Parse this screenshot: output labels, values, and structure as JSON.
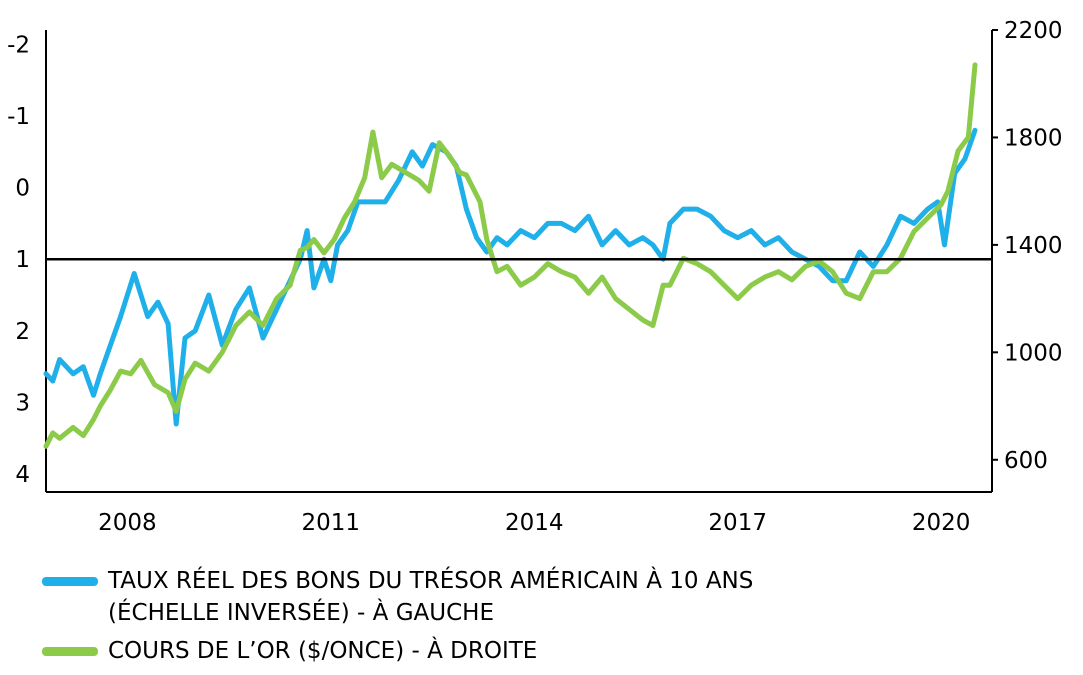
{
  "chart_data": {
    "type": "line",
    "title": "",
    "left_axis": {
      "ticks": [
        "-2",
        "-1",
        "0",
        "1",
        "2",
        "3",
        "4"
      ],
      "values": [
        -2,
        -1,
        0,
        1,
        2,
        3,
        4
      ],
      "inverted": true,
      "ylim": [
        -2.2,
        4.25
      ]
    },
    "right_axis": {
      "ticks": [
        "2200",
        "1800",
        "1400",
        "1000",
        "600"
      ],
      "values": [
        2200,
        1800,
        1400,
        1000,
        600
      ],
      "ylim": [
        480,
        2200
      ]
    },
    "x_axis": {
      "ticks": [
        "2008",
        "2011",
        "2014",
        "2017",
        "2020"
      ],
      "values": [
        2008,
        2011,
        2014,
        2017,
        2020
      ],
      "xlim": [
        2006.8,
        2020.75
      ]
    },
    "reference_line": {
      "axis": "left",
      "value": 1
    },
    "grid": false,
    "legend_position": "bottom",
    "series": [
      {
        "name": "TAUX RÉEL DES BONS DU TRÉSOR AMÉRICAIN À 10 ANS\n(ÉCHELLE INVERSÉE) - À GAUCHE",
        "axis": "left",
        "color": "#1fb0ea",
        "x": [
          2006.8,
          2006.9,
          2007.0,
          2007.2,
          2007.35,
          2007.5,
          2007.6,
          2007.75,
          2007.9,
          2008.1,
          2008.3,
          2008.45,
          2008.6,
          2008.72,
          2008.85,
          2009.0,
          2009.2,
          2009.4,
          2009.6,
          2009.8,
          2010.0,
          2010.2,
          2010.4,
          2010.55,
          2010.65,
          2010.75,
          2010.9,
          2011.0,
          2011.1,
          2011.25,
          2011.4,
          2011.6,
          2011.8,
          2012.0,
          2012.2,
          2012.35,
          2012.5,
          2012.7,
          2012.85,
          2013.0,
          2013.15,
          2013.3,
          2013.45,
          2013.6,
          2013.8,
          2014.0,
          2014.2,
          2014.4,
          2014.6,
          2014.8,
          2015.0,
          2015.2,
          2015.4,
          2015.6,
          2015.75,
          2015.9,
          2016.0,
          2016.2,
          2016.4,
          2016.6,
          2016.8,
          2017.0,
          2017.2,
          2017.4,
          2017.6,
          2017.8,
          2018.0,
          2018.2,
          2018.4,
          2018.6,
          2018.8,
          2019.0,
          2019.2,
          2019.4,
          2019.6,
          2019.8,
          2019.95,
          2020.05,
          2020.2,
          2020.35,
          2020.5
        ],
        "y": [
          2.6,
          2.7,
          2.4,
          2.6,
          2.5,
          2.9,
          2.6,
          2.2,
          1.8,
          1.2,
          1.8,
          1.6,
          1.9,
          3.3,
          2.1,
          2.0,
          1.5,
          2.2,
          1.7,
          1.4,
          2.1,
          1.7,
          1.3,
          1.0,
          0.6,
          1.4,
          1.0,
          1.3,
          0.8,
          0.6,
          0.2,
          0.2,
          0.2,
          -0.1,
          -0.5,
          -0.3,
          -0.6,
          -0.5,
          -0.3,
          0.3,
          0.7,
          0.9,
          0.7,
          0.8,
          0.6,
          0.7,
          0.5,
          0.5,
          0.6,
          0.4,
          0.8,
          0.6,
          0.8,
          0.7,
          0.8,
          1.0,
          0.5,
          0.3,
          0.3,
          0.4,
          0.6,
          0.7,
          0.6,
          0.8,
          0.7,
          0.9,
          1.0,
          1.1,
          1.3,
          1.3,
          0.9,
          1.1,
          0.8,
          0.4,
          0.5,
          0.3,
          0.2,
          0.8,
          -0.2,
          -0.4,
          -0.8
        ]
      },
      {
        "name": "COURS DE L’OR ($/ONCE) - À DROITE",
        "axis": "right",
        "color": "#8cca4a",
        "x": [
          2006.8,
          2006.9,
          2007.0,
          2007.2,
          2007.35,
          2007.5,
          2007.6,
          2007.75,
          2007.9,
          2008.05,
          2008.2,
          2008.4,
          2008.6,
          2008.72,
          2008.85,
          2009.0,
          2009.2,
          2009.4,
          2009.6,
          2009.8,
          2010.0,
          2010.2,
          2010.4,
          2010.55,
          2010.65,
          2010.75,
          2010.9,
          2011.05,
          2011.2,
          2011.35,
          2011.5,
          2011.62,
          2011.75,
          2011.9,
          2012.1,
          2012.3,
          2012.45,
          2012.6,
          2012.75,
          2012.9,
          2013.0,
          2013.2,
          2013.3,
          2013.45,
          2013.6,
          2013.8,
          2014.0,
          2014.2,
          2014.4,
          2014.6,
          2014.8,
          2015.0,
          2015.2,
          2015.4,
          2015.6,
          2015.75,
          2015.9,
          2016.0,
          2016.2,
          2016.4,
          2016.6,
          2016.8,
          2017.0,
          2017.2,
          2017.4,
          2017.6,
          2017.8,
          2018.0,
          2018.2,
          2018.4,
          2018.6,
          2018.8,
          2019.0,
          2019.2,
          2019.4,
          2019.6,
          2019.8,
          2020.0,
          2020.1,
          2020.25,
          2020.4,
          2020.5
        ],
        "y": [
          650,
          700,
          680,
          720,
          690,
          750,
          800,
          860,
          930,
          920,
          970,
          880,
          850,
          780,
          900,
          960,
          930,
          1000,
          1100,
          1150,
          1100,
          1200,
          1250,
          1380,
          1390,
          1420,
          1370,
          1420,
          1500,
          1560,
          1650,
          1820,
          1650,
          1700,
          1670,
          1640,
          1600,
          1780,
          1730,
          1670,
          1660,
          1560,
          1420,
          1300,
          1320,
          1250,
          1280,
          1330,
          1300,
          1280,
          1220,
          1280,
          1200,
          1160,
          1120,
          1100,
          1250,
          1250,
          1350,
          1330,
          1300,
          1250,
          1200,
          1250,
          1280,
          1300,
          1270,
          1320,
          1340,
          1300,
          1220,
          1200,
          1300,
          1300,
          1350,
          1450,
          1500,
          1550,
          1600,
          1750,
          1800,
          2070
        ]
      }
    ]
  }
}
